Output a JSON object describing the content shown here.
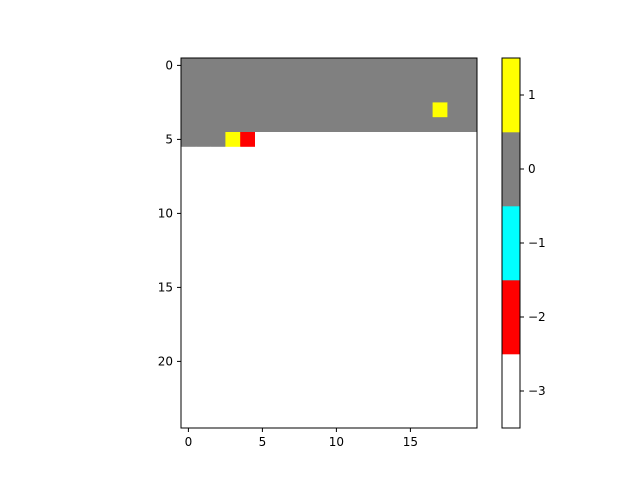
{
  "chart_data": {
    "type": "heatmap",
    "title": "",
    "xlabel": "",
    "ylabel": "",
    "x_range": [
      -0.5,
      19.5
    ],
    "y_range": [
      24.5,
      -0.5
    ],
    "x_ticks": [
      0,
      5,
      10,
      15
    ],
    "x_tick_labels": [
      "0",
      "5",
      "10",
      "15"
    ],
    "y_ticks": [
      0,
      5,
      10,
      15,
      20
    ],
    "y_tick_labels": [
      "0",
      "5",
      "10",
      "15",
      "20"
    ],
    "grid": false,
    "default_value": -3,
    "rows": 25,
    "cols": 20,
    "cells": [
      {
        "row_from": 0,
        "row_to": 4,
        "col_from": 0,
        "col_to": 19,
        "value": 0
      },
      {
        "row_from": 5,
        "row_to": 5,
        "col_from": 0,
        "col_to": 4,
        "value": 0
      },
      {
        "row_from": 3,
        "row_to": 3,
        "col_from": 17,
        "col_to": 17,
        "value": 1
      },
      {
        "row_from": 5,
        "row_to": 5,
        "col_from": 3,
        "col_to": 3,
        "value": 1
      },
      {
        "row_from": 5,
        "row_to": 5,
        "col_from": 4,
        "col_to": 4,
        "value": -2
      }
    ],
    "colorbar": {
      "levels": [
        -3,
        -2,
        -1,
        0,
        1
      ],
      "colors": [
        "#ffffff",
        "#ff0000",
        "#00ffff",
        "#808080",
        "#ffff00"
      ],
      "range": [
        -3.5,
        1.5
      ],
      "ticks": [
        -3,
        -2,
        -1,
        0,
        1
      ],
      "tick_labels": [
        "−3",
        "−2",
        "−1",
        "0",
        "1"
      ]
    }
  }
}
